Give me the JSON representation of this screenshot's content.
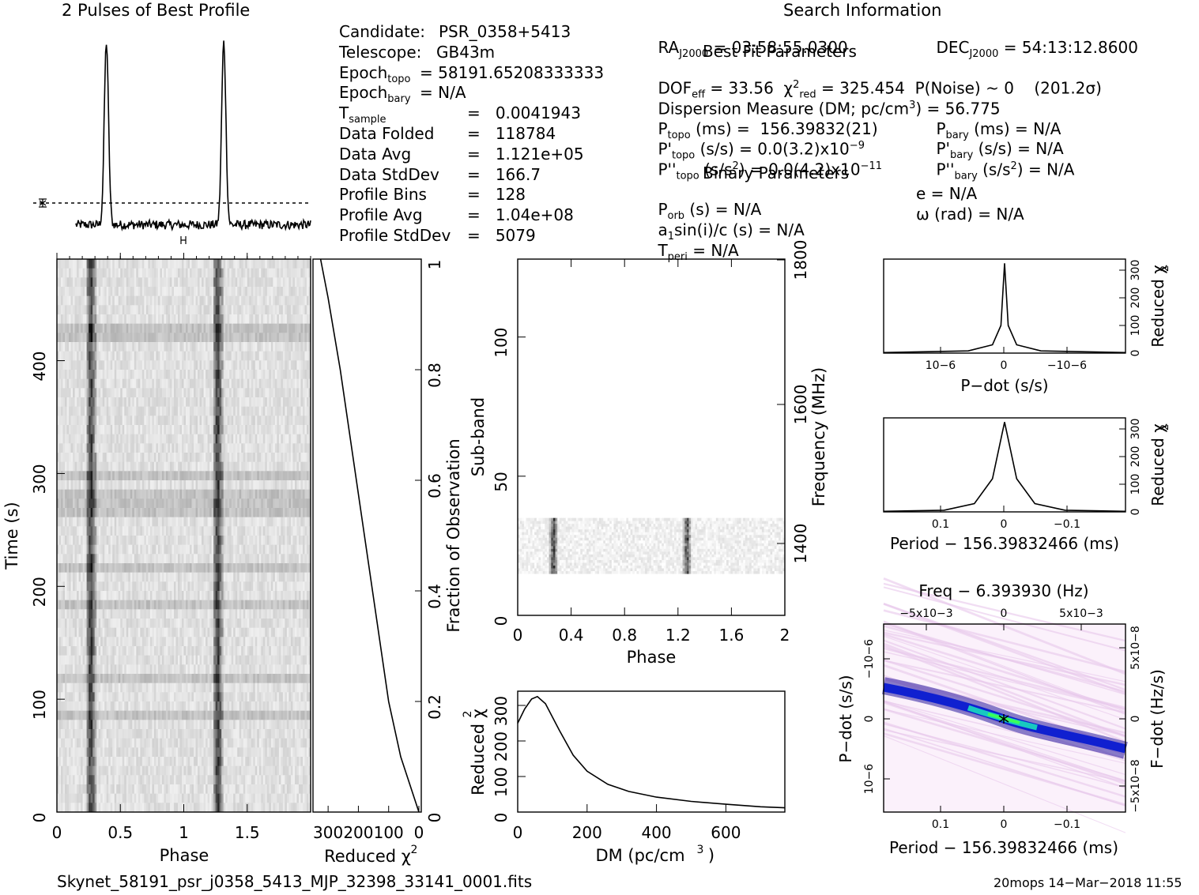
{
  "titles": {
    "profile": "2 Pulses of Best Profile",
    "search": "Search Information",
    "best_fit": "Best Fit Parameters",
    "binary": "Binary Parameters"
  },
  "info_left": [
    {
      "label": "Candidate:",
      "value": "PSR_0358+5413"
    },
    {
      "label": "Telescope:",
      "value": "GB43m"
    },
    {
      "label": "Epoch",
      "sub": "topo",
      "value": "= 58191.65208333333"
    },
    {
      "label": "Epoch",
      "sub": "bary",
      "value": "= N/A"
    },
    {
      "label": "T",
      "sub": "sample",
      "value": "=   0.0041943"
    },
    {
      "label": "Data Folded",
      "value": "=   118784"
    },
    {
      "label": "Data Avg",
      "value": "=   1.121e+05"
    },
    {
      "label": "Data StdDev",
      "value": "=   166.7"
    },
    {
      "label": "Profile Bins",
      "value": "=   128"
    },
    {
      "label": "Profile Avg",
      "value": "=   1.04e+08"
    },
    {
      "label": "Profile StdDev",
      "value": "=   5079"
    }
  ],
  "info_mid": {
    "ra": "RA",
    "ra_sub": "J2000",
    "ra_val": "= 03:58:55.0300",
    "dof": "DOF",
    "dof_sub": "eff",
    "dof_val": "= 33.56",
    "chi": "χ",
    "chi_sup": "2",
    "chi_sub": "red",
    "chi_val": "= 325.454",
    "pnoise": "P(Noise) ~ 0    (201.2σ)",
    "dm": "Dispersion Measure (DM; pc/cm",
    "dm_sup": "3",
    "dm_val": ") = 56.775",
    "ptopo": "P",
    "ptopo_sub": "topo",
    "ptopo_val": "(ms) =  156.39832(21)",
    "pdtopo": "P'",
    "pdtopo_sub": "topo",
    "pdtopo_val": "(s/s) = 0.0(3.2)x10",
    "pdtopo_exp": "−9",
    "pddtopo": "P''",
    "pddtopo_sub": "topo",
    "pddtopo_val": "(s/s",
    "pddtopo_sup": "2",
    "pddtopo_val2": ") = 0.0(4.2)x10",
    "pddtopo_exp": "−11",
    "porb": "P",
    "porb_sub": "orb",
    "porb_val": "(s) = N/A",
    "a1": "a",
    "a1_sub": "1",
    "a1_val": "sin(i)/c (s) = N/A",
    "tperi": "T",
    "tperi_sub": "peri",
    "tperi_val": "= N/A"
  },
  "info_right": {
    "dec": "DEC",
    "dec_sub": "J2000",
    "dec_val": "= 54:13:12.8600",
    "pbary": "P",
    "pbary_sub": "bary",
    "pbary_val": "(ms) = N/A",
    "pdbary": "P'",
    "pdbary_sub": "bary",
    "pdbary_val": "(s/s) = N/A",
    "pddbary": "P''",
    "pddbary_sub": "bary",
    "pddbary_val": "(s/s",
    "pddbary_sup": "2",
    "pddbary_val2": ") = N/A",
    "e": "e = N/A",
    "omega": "ω (rad) = N/A"
  },
  "footer": {
    "filename": "Skynet_58191_psr_j0358_5413_MJP_32398_33141_0001.fits",
    "stamp": "20mops 14−Mar−2018 11:55"
  },
  "chart_data": [
    {
      "type": "line",
      "title": "2 Pulses of Best Profile",
      "xlabel": "",
      "ylabel": "",
      "x": [
        0.0,
        0.1,
        0.2,
        0.23,
        0.26,
        0.3,
        0.4,
        0.6,
        0.8,
        1.0,
        1.1,
        1.2,
        1.23,
        1.26,
        1.3,
        1.4,
        1.6,
        1.8,
        2.0
      ],
      "y": [
        0.02,
        0.02,
        0.03,
        0.3,
        1.0,
        0.1,
        0.0,
        0.01,
        0.0,
        0.02,
        0.02,
        0.03,
        0.3,
        1.0,
        0.1,
        0.0,
        0.01,
        0.0,
        0.02
      ],
      "peaks_at_phase": [
        0.26,
        1.26
      ]
    },
    {
      "type": "heatmap",
      "xlabel": "Phase",
      "ylabel": "Time (s)",
      "xlim": [
        0,
        2
      ],
      "ylim": [
        0,
        490
      ],
      "xticks": [
        "0",
        "0.5",
        "1",
        "1.5"
      ],
      "yticks": [
        "0",
        "100",
        "200",
        "300",
        "400"
      ],
      "pulse_phases": [
        0.26,
        1.26
      ]
    },
    {
      "type": "line",
      "xlabel": "Reduced χ2",
      "ylabel": "Fraction of Observation",
      "xlim": [
        350,
        0
      ],
      "ylim": [
        0,
        1
      ],
      "xticks": [
        "300",
        "200",
        "100",
        "0"
      ],
      "yticks": [
        "0",
        "0.2",
        "0.4",
        "0.6",
        "0.8",
        "1"
      ],
      "x": [
        0,
        30,
        60,
        100,
        140,
        180,
        220,
        260,
        300,
        325
      ],
      "y": [
        0.0,
        0.05,
        0.1,
        0.2,
        0.35,
        0.5,
        0.65,
        0.8,
        0.93,
        1.0
      ]
    },
    {
      "type": "heatmap",
      "xlabel": "Phase",
      "ylabel": "Sub-band",
      "y2label": "Frequency (MHz)",
      "xlim": [
        0,
        2
      ],
      "ylim": [
        0,
        128
      ],
      "xticks": [
        "0",
        "0.4",
        "0.8",
        "1.2",
        "1.6",
        "2"
      ],
      "yticks": [
        "0",
        "50",
        "100"
      ],
      "y2ticks": [
        "1400",
        "1600",
        "1800"
      ],
      "active_subbands": [
        15,
        35
      ],
      "pulse_phases": [
        0.26,
        1.26
      ]
    },
    {
      "type": "line",
      "xlabel": "DM (pc/cm3)",
      "ylabel": "Reduced χ2",
      "xlim": [
        0,
        770
      ],
      "ylim": [
        0,
        340
      ],
      "xticks": [
        "0",
        "200",
        "400",
        "600"
      ],
      "yticks": [
        "0",
        "100",
        "200",
        "300"
      ],
      "x": [
        0,
        20,
        40,
        56.775,
        80,
        120,
        160,
        200,
        260,
        320,
        400,
        500,
        600,
        700,
        770
      ],
      "y": [
        250,
        290,
        318,
        325,
        305,
        230,
        160,
        115,
        78,
        58,
        42,
        30,
        22,
        15,
        12
      ]
    },
    {
      "type": "line",
      "xlabel": "P−dot (s/s)",
      "ylabel": "Reduced χ2",
      "yticks": [
        "0",
        "100",
        "200",
        "300"
      ],
      "xticks_text": [
        "10−6",
        "0",
        "−10−6"
      ],
      "x": [
        -1.0,
        -0.3,
        -0.1,
        -0.03,
        0,
        0.03,
        0.1,
        0.3,
        1.0
      ],
      "y": [
        2,
        8,
        30,
        100,
        325,
        100,
        30,
        8,
        2
      ]
    },
    {
      "type": "line",
      "xlabel": "Period − 156.39832466 (ms)",
      "ylabel": "Reduced χ2",
      "yticks": [
        "0",
        "100",
        "200",
        "300"
      ],
      "xticks": [
        "0.1",
        "0",
        "−0.1"
      ],
      "x": [
        0.2,
        0.1,
        0.05,
        0.02,
        0,
        -0.02,
        -0.05,
        -0.1,
        -0.2
      ],
      "y": [
        2,
        6,
        30,
        120,
        325,
        120,
        30,
        6,
        2
      ]
    },
    {
      "type": "heatmap",
      "title": "Freq − 6.393930 (Hz)",
      "xlabel": "Period − 156.39832466 (ms)",
      "ylabel": "P−dot (s/s)",
      "y2label": "F−dot (Hz/s)",
      "xticks": [
        "0.1",
        "0",
        "−0.1"
      ],
      "x2ticks": [
        "−5x10−3",
        "0",
        "5x10−3"
      ],
      "yticks": [
        "10−6",
        "0",
        "−10−6"
      ],
      "y2ticks": [
        "−5x10−8",
        "0",
        "5x10−8"
      ]
    }
  ]
}
